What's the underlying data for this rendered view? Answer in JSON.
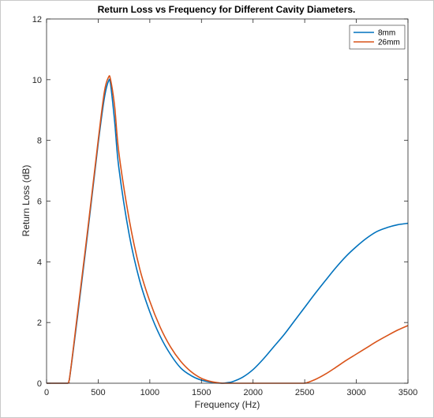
{
  "chart_data": {
    "type": "line",
    "title": "Return Loss vs Frequency for Different Cavity Diameters.",
    "xlabel": "Frequency (Hz)",
    "ylabel": "Return Loss (dB)",
    "xlim": [
      0,
      3500
    ],
    "ylim": [
      0,
      12
    ],
    "xticks": [
      0,
      500,
      1000,
      1500,
      2000,
      2500,
      3000,
      3500
    ],
    "yticks": [
      0,
      2,
      4,
      6,
      8,
      10,
      12
    ],
    "grid": false,
    "legend_position": "top-right",
    "series": [
      {
        "name": "8mm",
        "color": "#0072BD",
        "x": [
          0,
          200,
          220,
          300,
          400,
          500,
          560,
          600,
          620,
          660,
          700,
          800,
          900,
          1000,
          1100,
          1200,
          1300,
          1400,
          1500,
          1600,
          1700,
          1750,
          1800,
          1900,
          2000,
          2100,
          2200,
          2300,
          2400,
          2500,
          2600,
          2700,
          2800,
          2900,
          3000,
          3100,
          3200,
          3300,
          3400,
          3500
        ],
        "y": [
          0,
          0,
          0.1,
          2.2,
          5.0,
          7.9,
          9.4,
          9.95,
          9.85,
          8.6,
          7.1,
          4.9,
          3.4,
          2.35,
          1.55,
          0.95,
          0.5,
          0.25,
          0.1,
          0.03,
          0.0,
          0.02,
          0.05,
          0.2,
          0.45,
          0.8,
          1.2,
          1.6,
          2.05,
          2.5,
          2.95,
          3.38,
          3.8,
          4.18,
          4.5,
          4.78,
          5.0,
          5.13,
          5.22,
          5.27
        ]
      },
      {
        "name": "26mm",
        "color": "#D95319",
        "x": [
          0,
          200,
          220,
          300,
          400,
          500,
          560,
          600,
          620,
          660,
          700,
          800,
          900,
          1000,
          1100,
          1200,
          1300,
          1400,
          1500,
          1600,
          1700,
          1750,
          1800,
          1900,
          2000,
          2100,
          2200,
          2300,
          2400,
          2500,
          2600,
          2700,
          2800,
          2900,
          3000,
          3100,
          3200,
          3300,
          3400,
          3500
        ],
        "y": [
          0,
          0,
          0.1,
          2.3,
          5.1,
          8.0,
          9.6,
          10.08,
          10.0,
          9.1,
          7.6,
          5.4,
          3.8,
          2.7,
          1.85,
          1.2,
          0.72,
          0.38,
          0.16,
          0.05,
          0.0,
          0.0,
          0.0,
          0.0,
          0.0,
          0.0,
          0.0,
          0.0,
          0.0,
          0.0,
          0.12,
          0.3,
          0.52,
          0.75,
          0.96,
          1.17,
          1.38,
          1.57,
          1.75,
          1.9
        ]
      }
    ]
  }
}
